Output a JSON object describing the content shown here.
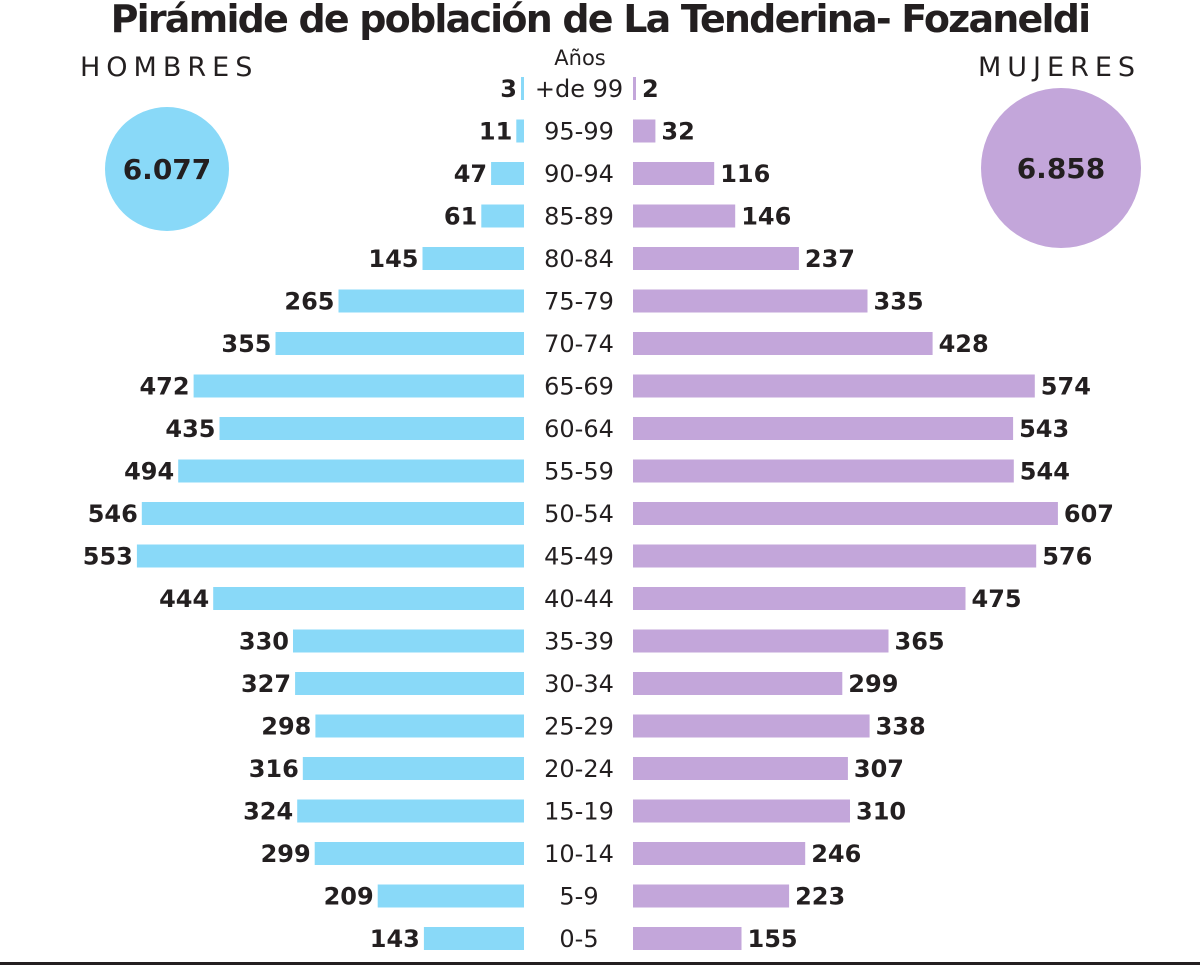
{
  "title": "Pirámide de población de La Tenderina- Fozaneldi",
  "men_label": "HOMBRES",
  "women_label": "MUJERES",
  "men_total": "6.077",
  "women_total": "6.858",
  "colors": {
    "men": "#89d9f8",
    "women": "#c3a6da",
    "text": "#231f20"
  },
  "chart_data": {
    "type": "bar",
    "title": "Pirámide de población de La Tenderina- Fozaneldi",
    "ylabel": "Años",
    "categories": [
      "+de 99",
      "95-99",
      "90-94",
      "85-89",
      "80-84",
      "75-79",
      "70-74",
      "65-69",
      "60-64",
      "55-59",
      "50-54",
      "45-49",
      "40-44",
      "35-39",
      "30-34",
      "25-29",
      "20-24",
      "15-19",
      "10-14",
      "5-9",
      "0-5"
    ],
    "series": [
      {
        "name": "HOMBRES",
        "values": [
          3,
          11,
          47,
          61,
          145,
          265,
          355,
          472,
          435,
          494,
          546,
          553,
          444,
          330,
          327,
          298,
          316,
          324,
          299,
          209,
          143
        ]
      },
      {
        "name": "MUJERES",
        "values": [
          2,
          32,
          116,
          146,
          237,
          335,
          428,
          574,
          543,
          544,
          607,
          576,
          475,
          365,
          299,
          338,
          307,
          310,
          246,
          223,
          155
        ]
      }
    ],
    "labels": {
      "men": [
        "3",
        "11",
        "47",
        "61",
        "145",
        "265",
        "355",
        "472",
        "435",
        "494",
        "546",
        "553",
        "444",
        "330",
        "327",
        "298",
        "316",
        "324",
        "299",
        "209",
        "143"
      ],
      "women": [
        "2",
        "32",
        "116",
        "146",
        "237",
        "335",
        "428",
        "574",
        "543",
        "544",
        "607",
        "576",
        "475",
        "365",
        "299",
        "338",
        "307",
        "310",
        "246",
        "223",
        "155"
      ]
    }
  }
}
